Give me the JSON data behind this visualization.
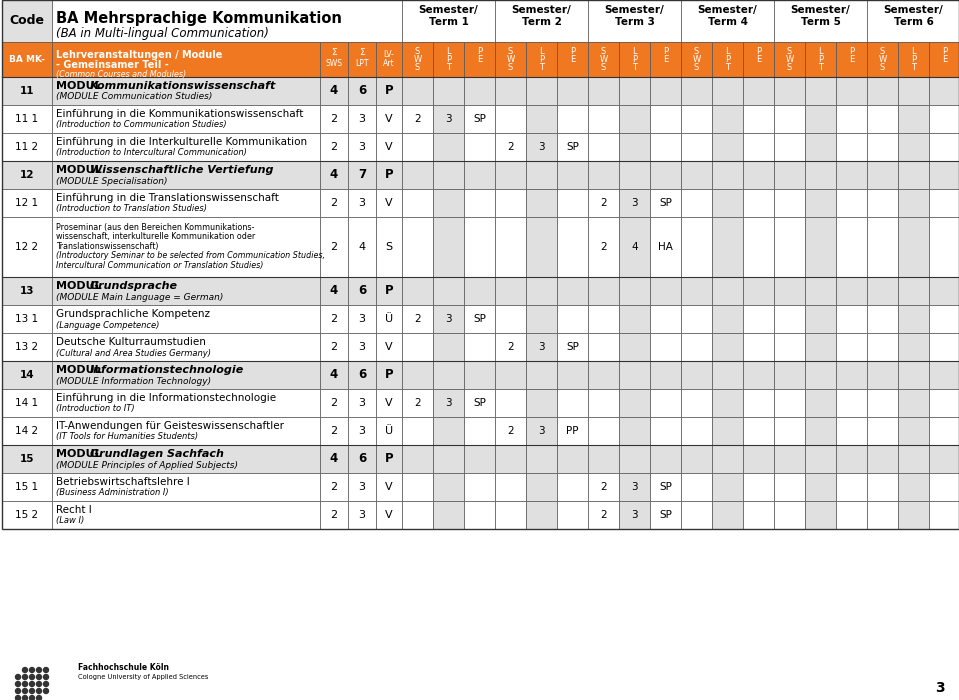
{
  "orange": "#F07820",
  "light_gray": "#E0E0E0",
  "mid_gray": "#C8C8C8",
  "white": "#FFFFFF",
  "black": "#000000",
  "rows": [
    {
      "code": "11",
      "module": true,
      "text1": "MODUL Kommunikationswissenschaft",
      "text2": "(MODULE Communication Studies)",
      "sws": "4",
      "lpt": "6",
      "art": "P",
      "sem_data": {}
    },
    {
      "code": "11 1",
      "module": false,
      "text1": "Einführung in die Kommunikationswissenschaft",
      "text2": "(Introduction to Communication Studies)",
      "sws": "2",
      "lpt": "3",
      "art": "V",
      "sem_data": {
        "1": [
          "2",
          "3",
          "SP"
        ]
      }
    },
    {
      "code": "11 2",
      "module": false,
      "text1": "Einführung in die Interkulturelle Kommunikation",
      "text2": "(Introduction to Intercultural Communication)",
      "sws": "2",
      "lpt": "3",
      "art": "V",
      "sem_data": {
        "2": [
          "2",
          "3",
          "SP"
        ]
      }
    },
    {
      "code": "12",
      "module": true,
      "text1": "MODUL Wissenschaftliche Vertiefung",
      "text2": "(MODULE Specialisation)",
      "sws": "4",
      "lpt": "7",
      "art": "P",
      "sem_data": {}
    },
    {
      "code": "12 1",
      "module": false,
      "text1": "Einführung in die Translationswissenschaft",
      "text2": "(Introduction to Translation Studies)",
      "sws": "2",
      "lpt": "3",
      "art": "V",
      "sem_data": {
        "3": [
          "2",
          "3",
          "SP"
        ]
      }
    },
    {
      "code": "12 2",
      "module": false,
      "text1": "Proseminar (aus den Bereichen Kommunikations-",
      "text2": "wissenschaft, interkulturelle Kommunikation oder",
      "text3": "Translationswissenschaft)",
      "text4": "(Introductory Seminar to be selected from Communication Studies,",
      "text5": "Intercultural Communication or Translation Studies)",
      "sws": "2",
      "lpt": "4",
      "art": "S",
      "sem_data": {
        "3": [
          "2",
          "4",
          "HA"
        ]
      }
    },
    {
      "code": "13",
      "module": true,
      "text1": "MODUL Grundsprache",
      "text2": "(MODULE Main Language = German)",
      "sws": "4",
      "lpt": "6",
      "art": "P",
      "sem_data": {}
    },
    {
      "code": "13 1",
      "module": false,
      "text1": "Grundsprachliche Kompetenz",
      "text2": "(Language Competence)",
      "sws": "2",
      "lpt": "3",
      "art": "Ü",
      "sem_data": {
        "1": [
          "2",
          "3",
          "SP"
        ]
      }
    },
    {
      "code": "13 2",
      "module": false,
      "text1": "Deutsche Kulturraumstudien",
      "text2": "(Cultural and Area Studies Germany)",
      "sws": "2",
      "lpt": "3",
      "art": "V",
      "sem_data": {
        "2": [
          "2",
          "3",
          "SP"
        ]
      }
    },
    {
      "code": "14",
      "module": true,
      "text1": "MODUL Informationstechnologie",
      "text2": "(MODULE Information Technology)",
      "sws": "4",
      "lpt": "6",
      "art": "P",
      "sem_data": {}
    },
    {
      "code": "14 1",
      "module": false,
      "text1": "Einführung in die Informationstechnologie",
      "text2": "(Introduction to IT)",
      "sws": "2",
      "lpt": "3",
      "art": "V",
      "sem_data": {
        "1": [
          "2",
          "3",
          "SP"
        ]
      }
    },
    {
      "code": "14 2",
      "module": false,
      "text1": "IT-Anwendungen für Geisteswissenschaftler",
      "text2": "(IT Tools for Humanities Students)",
      "sws": "2",
      "lpt": "3",
      "art": "Ü",
      "sem_data": {
        "2": [
          "2",
          "3",
          "PP"
        ]
      }
    },
    {
      "code": "15",
      "module": true,
      "text1": "MODUL Grundlagen Sachfach",
      "text2": "(MODULE Principles of Applied Subjects)",
      "sws": "4",
      "lpt": "6",
      "art": "P",
      "sem_data": {}
    },
    {
      "code": "15 1",
      "module": false,
      "text1": "Betriebswirtschaftslehre I",
      "text2": "(Business Administration I)",
      "sws": "2",
      "lpt": "3",
      "art": "V",
      "sem_data": {
        "3": [
          "2",
          "3",
          "SP"
        ]
      }
    },
    {
      "code": "15 2",
      "module": false,
      "text1": "Recht I",
      "text2": "(Law I)",
      "sws": "2",
      "lpt": "3",
      "art": "V",
      "sem_data": {
        "3": [
          "2",
          "3",
          "SP"
        ]
      }
    }
  ]
}
